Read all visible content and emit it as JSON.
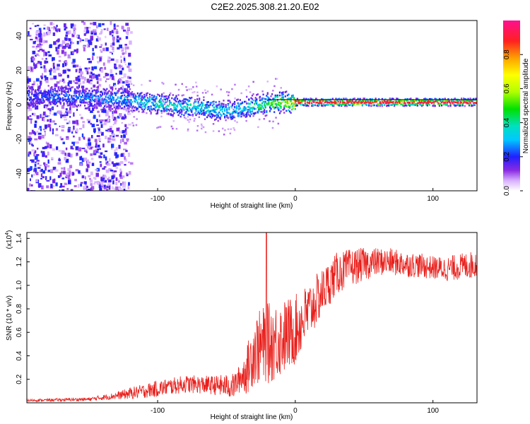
{
  "title": "C2E2.2025.308.21.20.E02",
  "colorbar": {
    "label": "Normalized spectral amplitude",
    "ticks": [
      "0.0",
      "0.2",
      "0.4",
      "0.6",
      "0.8"
    ],
    "tick_values": [
      0.0,
      0.2,
      0.4,
      0.6,
      0.8
    ],
    "range": [
      0,
      1
    ]
  },
  "chart_data": [
    {
      "type": "heatmap",
      "name": "spectrogram",
      "xlabel": "Height of straight line (km)",
      "ylabel": "Frequency (Hz)",
      "xlim": [
        -195,
        132
      ],
      "ylim": [
        -50,
        49
      ],
      "xticks": [
        -100,
        0,
        100
      ],
      "xtick_labels": [
        "-100",
        "0",
        "100"
      ],
      "yticks": [
        -40,
        -20,
        0,
        20,
        40
      ],
      "ytick_labels": [
        "-40",
        "-20",
        "0",
        "20",
        "40"
      ],
      "reference_line_hz": 3,
      "dominant_frequency_profile": {
        "x": [
          -190,
          -160,
          -130,
          -110,
          -90,
          -70,
          -50,
          -40,
          -30,
          -20,
          -10,
          0,
          50,
          100,
          130
        ],
        "freq_hz": [
          5,
          5,
          4,
          2,
          0,
          -1,
          -3,
          -2,
          0,
          1,
          2,
          2,
          2,
          2,
          2
        ],
        "peak_amplitude": [
          0.25,
          0.3,
          0.35,
          0.45,
          0.45,
          0.45,
          0.4,
          0.4,
          0.5,
          0.6,
          0.75,
          0.9,
          0.95,
          0.95,
          0.9
        ]
      }
    },
    {
      "type": "line",
      "name": "snr",
      "xlabel": "Height of straight line (km)",
      "ylabel": "SNR (10 * v/v)",
      "y_multiplier_label": "(x10",
      "y_multiplier_exp": "4",
      "y_multiplier_close": ")",
      "xlim": [
        -195,
        132
      ],
      "ylim": [
        0,
        1.45
      ],
      "xticks": [
        -100,
        0,
        100
      ],
      "xtick_labels": [
        "-100",
        "0",
        "100"
      ],
      "yticks": [
        0.2,
        0.4,
        0.6,
        0.8,
        1.0,
        1.2,
        1.4
      ],
      "ytick_labels": [
        "0.2",
        "0.4",
        "0.6",
        "0.8",
        "1.0",
        "1.2",
        "1.4"
      ],
      "color": "#e8201c",
      "trend": {
        "x": [
          -195,
          -150,
          -130,
          -120,
          -100,
          -80,
          -60,
          -45,
          -35,
          -30,
          -20,
          -10,
          0,
          10,
          20,
          30,
          40,
          50,
          60,
          70,
          80,
          90,
          100,
          110,
          120,
          132
        ],
        "y": [
          0.02,
          0.03,
          0.06,
          0.08,
          0.12,
          0.16,
          0.15,
          0.14,
          0.28,
          0.45,
          0.5,
          0.55,
          0.62,
          0.78,
          0.95,
          1.1,
          1.15,
          1.18,
          1.2,
          1.2,
          1.18,
          1.17,
          1.15,
          1.14,
          1.16,
          1.18
        ]
      },
      "noise_scale": {
        "x": [
          -195,
          -150,
          -130,
          -120,
          -100,
          -60,
          -40,
          -30,
          -20,
          0,
          20,
          60,
          100,
          132
        ],
        "amplitude": [
          0.01,
          0.015,
          0.03,
          0.05,
          0.07,
          0.08,
          0.12,
          0.3,
          0.35,
          0.3,
          0.2,
          0.12,
          0.1,
          0.12
        ]
      },
      "spike": {
        "x": -21,
        "y": 1.45
      }
    }
  ]
}
